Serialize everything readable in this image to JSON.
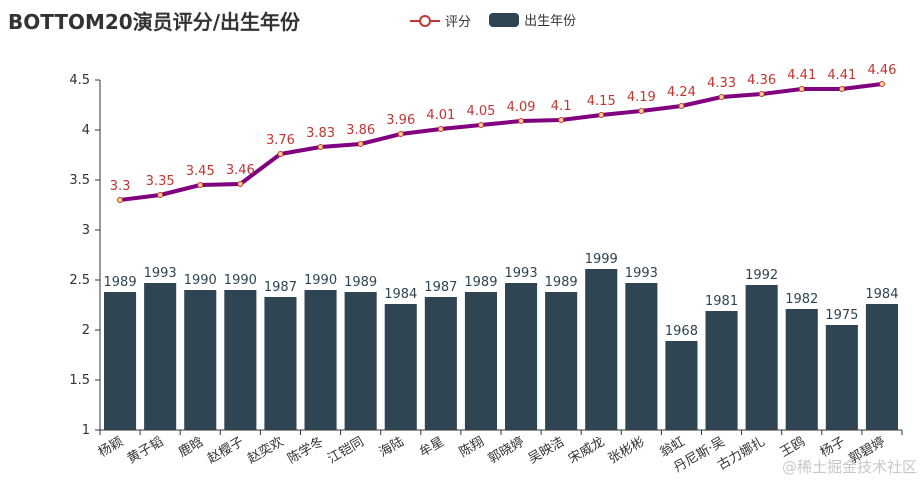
{
  "chart_data": {
    "type": "bar+line",
    "title": "BOTTOM20演员评分/出生年份",
    "categories": [
      "杨颖",
      "黄子韬",
      "鹿晗",
      "赵樱子",
      "赵奕欢",
      "陈学冬",
      "江铠同",
      "海陆",
      "牟星",
      "陈翔",
      "郭晓婷",
      "吴映洁",
      "宋威龙",
      "张彬彬",
      "翁虹",
      "丹尼斯·吴",
      "古力娜扎",
      "王鸥",
      "杨子",
      "郭碧婷"
    ],
    "series": [
      {
        "name": "评分",
        "type": "line",
        "values": [
          3.3,
          3.35,
          3.45,
          3.46,
          3.76,
          3.83,
          3.86,
          3.96,
          4.01,
          4.05,
          4.09,
          4.1,
          4.15,
          4.19,
          4.24,
          4.33,
          4.36,
          4.41,
          4.41,
          4.46
        ],
        "labels": [
          "3.3",
          "3.35",
          "3.45",
          "3.46",
          "3.76",
          "3.83",
          "3.86",
          "3.96",
          "4.01",
          "4.05",
          "4.09",
          "4.1",
          "4.15",
          "4.19",
          "4.24",
          "4.33",
          "4.36",
          "4.41",
          "4.41",
          "4.46"
        ]
      },
      {
        "name": "出生年份",
        "type": "bar",
        "labels": [
          1989,
          1993,
          1990,
          1990,
          1987,
          1990,
          1989,
          1984,
          1987,
          1989,
          1993,
          1989,
          1999,
          1993,
          1968,
          1981,
          1992,
          1982,
          1975,
          1984
        ],
        "values": [
          2.38,
          2.47,
          2.4,
          2.4,
          2.33,
          2.4,
          2.38,
          2.26,
          2.33,
          2.38,
          2.47,
          2.38,
          2.61,
          2.47,
          1.89,
          2.19,
          2.45,
          2.21,
          2.05,
          2.26
        ]
      }
    ],
    "yticks": [
      "1",
      "1.5",
      "2",
      "2.5",
      "3",
      "3.5",
      "4",
      "4.5"
    ],
    "ylim": [
      1,
      4.5
    ],
    "legend_position": "top-center"
  },
  "colors": {
    "line": "#800080",
    "line_label": "#c23531",
    "bar": "#2f4554",
    "marker_fill": "#ffd88a",
    "axis": "#333333",
    "legend_line": "#c23531"
  },
  "watermark": "@稀土掘金技术社区"
}
